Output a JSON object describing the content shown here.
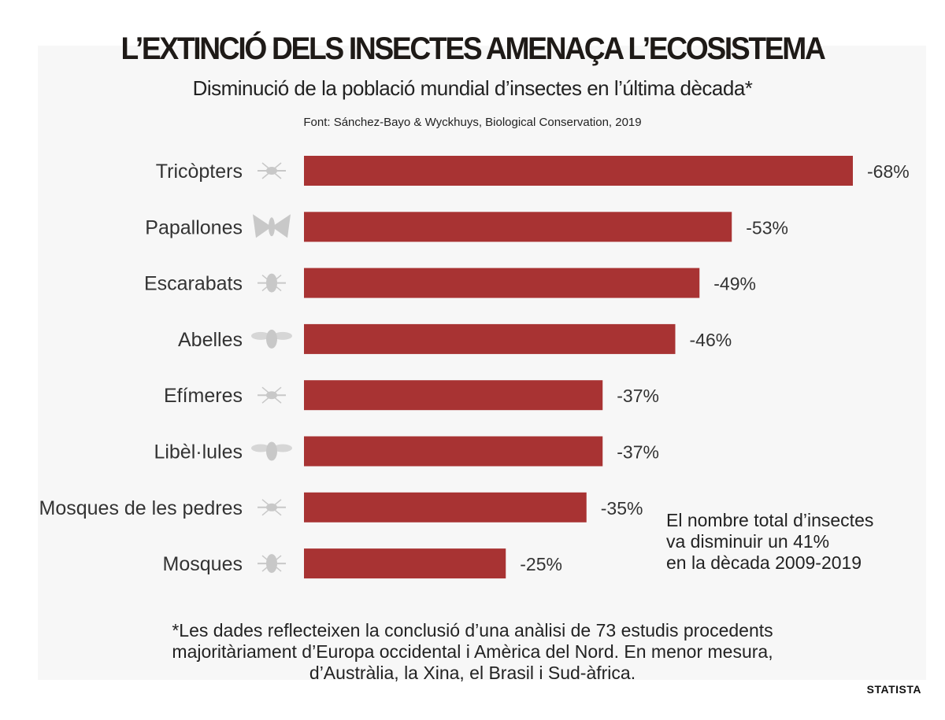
{
  "title": "L’EXTINCIÓ DELS INSECTES AMENAÇA L’ECOSISTEMA",
  "subtitle": "Disminució de la població mundial d’insectes en l’última dècada*",
  "source": "Font: Sánchez-Bayo & Wyckhuys, Biological Conservation, 2019",
  "note_lines": [
    "El nombre total d’insectes",
    "va disminuir un 41%",
    "en la dècada 2009-2019"
  ],
  "footnote_lines": [
    "*Les dades reflecteixen la conclusió d’una anàlisi de 73 estudis procedents",
    "majoritàriament d’Europa occidental i Amèrica del Nord. En menor mesura,",
    "d’Austràlia, la Xina, el Brasil i Sud-àfrica."
  ],
  "brand": "STATISTA",
  "colors": {
    "bar": "#a83333",
    "icon": "#c8c8c8",
    "panel": "#f7f7f7"
  },
  "chart_data": {
    "type": "bar",
    "orientation": "horizontal",
    "categories": [
      "Tricòpters",
      "Papallones",
      "Escarabats",
      "Abelles",
      "Efímeres",
      "Libèl·lules",
      "Mosques de les pedres",
      "Mosques"
    ],
    "icons": [
      "caddisfly-icon",
      "butterfly-icon",
      "beetle-icon",
      "bee-icon",
      "mayfly-icon",
      "dragonfly-icon",
      "stonefly-icon",
      "fly-icon"
    ],
    "values": [
      -68,
      -53,
      -49,
      -46,
      -37,
      -37,
      -35,
      -25
    ],
    "labels": [
      "-68%",
      "-53%",
      "-49%",
      "-46%",
      "-37%",
      "-37%",
      "-35%",
      "-25%"
    ],
    "unit": "%",
    "grid": false
  }
}
